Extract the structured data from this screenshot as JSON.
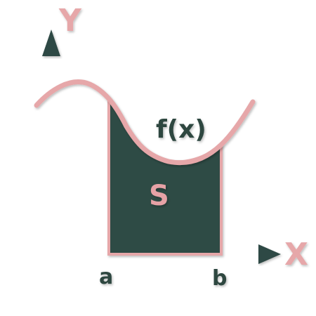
{
  "diagram": {
    "y_axis_label": "Y",
    "x_axis_label": "X",
    "function_label": "f(x)",
    "area_label": "S",
    "lower_bound_label": "a",
    "upper_bound_label": "b"
  },
  "colors": {
    "axis": "#e6a7a9",
    "axis_edge": "#c47f85",
    "arrow": "#2f4a44",
    "area_fill": "#2f4b45",
    "area_label": "#e6a2a6",
    "text_dark": "#2e4741",
    "background": "#ffffff"
  }
}
